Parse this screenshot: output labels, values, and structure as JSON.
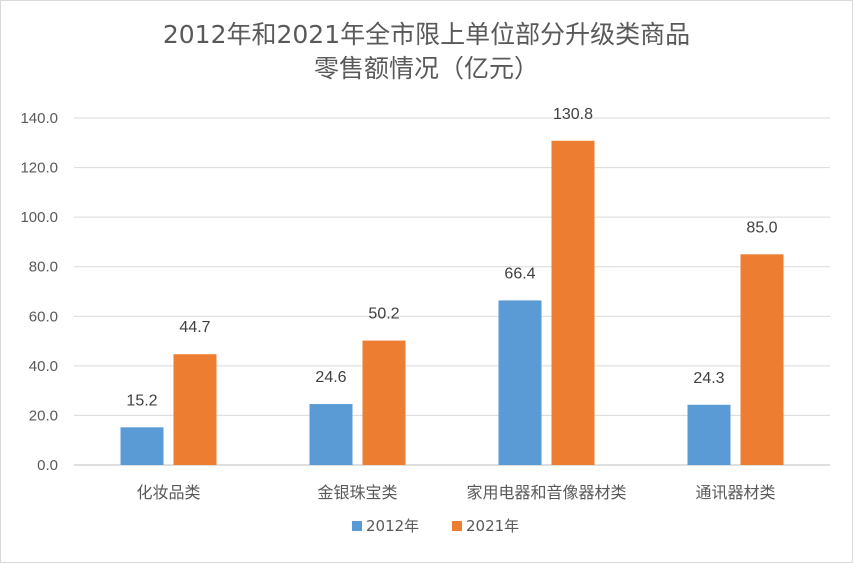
{
  "chart_data": {
    "type": "bar",
    "title_line1": "2012年和2021年全市限上单位部分升级类商品",
    "title_line2": "零售额情况（亿元）",
    "categories": [
      "化妆品类",
      "金银珠宝类",
      "家用电器和音像器材类",
      "通讯器材类"
    ],
    "series": [
      {
        "name": "2012年",
        "color": "#5b9bd5",
        "values": [
          15.2,
          24.6,
          66.4,
          24.3
        ]
      },
      {
        "name": "2021年",
        "color": "#ed7d31",
        "values": [
          44.7,
          50.2,
          130.8,
          85.0
        ]
      }
    ],
    "yticks": [
      "0.0",
      "20.0",
      "40.0",
      "60.0",
      "80.0",
      "100.0",
      "120.0",
      "140.0"
    ],
    "ylim": [
      0,
      140
    ],
    "grid": true,
    "legend": "bottom",
    "xlabel": "",
    "ylabel": ""
  }
}
